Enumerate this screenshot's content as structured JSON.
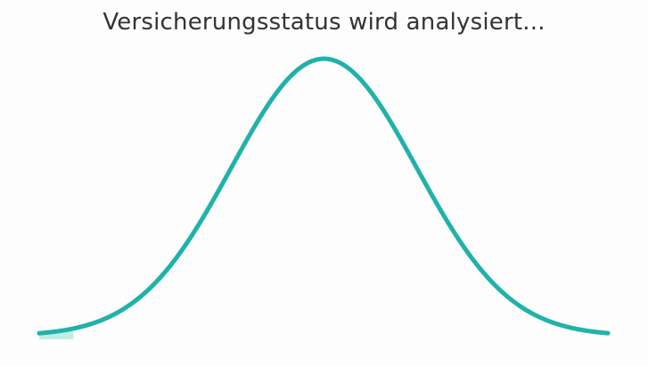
{
  "status": {
    "title": "Versicherungsstatus wird analysiert..."
  },
  "loader": {
    "type": "bell-curve",
    "accent_color": "#20b2aa",
    "progress_fill_color": "#bfeee7",
    "progress": 0.06
  }
}
